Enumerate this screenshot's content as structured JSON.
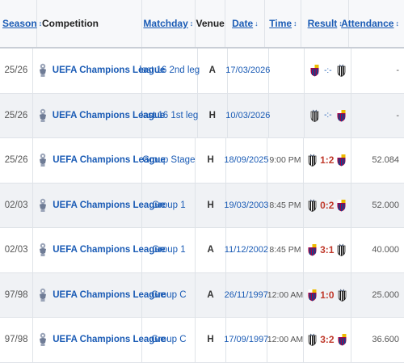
{
  "header": {
    "season": "Season",
    "competition": "Competition",
    "matchday": "Matchday",
    "venue": "Venue",
    "date": "Date",
    "time": "Time",
    "result": "Result",
    "attendance": "Attendance",
    "sort_arrow": "↕",
    "date_arrow": "↓"
  },
  "colors": {
    "win": "#c0392b",
    "draw": "#d4a017",
    "link": "#1a5bb5"
  },
  "rows": [
    {
      "season": "25/26",
      "competition": "UEFA Champions League",
      "matchday": "last 16 2nd leg",
      "venue": "A",
      "date": "17/03/2026",
      "time": "",
      "home": "barcelona",
      "away": "newcastle",
      "score": "-:-",
      "attendance": "-"
    },
    {
      "season": "25/26",
      "competition": "UEFA Champions League",
      "matchday": "last 16 1st leg",
      "venue": "H",
      "date": "10/03/2026",
      "time": "",
      "home": "newcastle",
      "away": "barcelona",
      "score": "-:-",
      "attendance": "-"
    },
    {
      "season": "25/26",
      "competition": "UEFA Champions League",
      "matchday": "Group Stage",
      "venue": "H",
      "date": "18/09/2025",
      "time": "9:00 PM",
      "home": "newcastle",
      "away": "barcelona",
      "score": "1:2",
      "attendance": "52.084"
    },
    {
      "season": "02/03",
      "competition": "UEFA Champions League",
      "matchday": "Group 1",
      "venue": "H",
      "date": "19/03/2003",
      "time": "8:45 PM",
      "home": "newcastle",
      "away": "barcelona",
      "score": "0:2",
      "attendance": "52.000"
    },
    {
      "season": "02/03",
      "competition": "UEFA Champions League",
      "matchday": "Group 1",
      "venue": "A",
      "date": "11/12/2002",
      "time": "8:45 PM",
      "home": "barcelona",
      "away": "newcastle",
      "score": "3:1",
      "attendance": "40.000"
    },
    {
      "season": "97/98",
      "competition": "UEFA Champions League",
      "matchday": "Group C",
      "venue": "A",
      "date": "26/11/1997",
      "time": "12:00 AM",
      "home": "barcelona",
      "away": "newcastle",
      "score": "1:0",
      "attendance": "25.000"
    },
    {
      "season": "97/98",
      "competition": "UEFA Champions League",
      "matchday": "Group C",
      "venue": "H",
      "date": "17/09/1997",
      "time": "12:00 AM",
      "home": "newcastle",
      "away": "barcelona",
      "score": "3:2",
      "attendance": "36.600"
    }
  ]
}
